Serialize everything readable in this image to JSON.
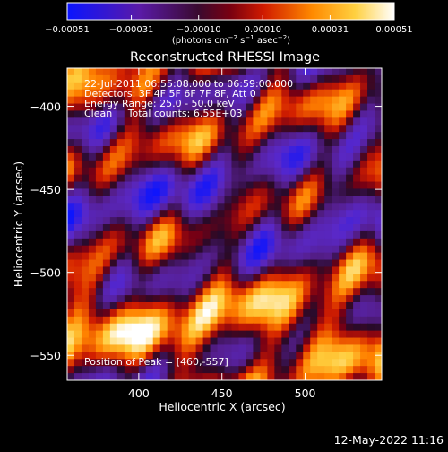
{
  "chart_data": {
    "type": "heatmap",
    "title": "Reconstructed RHESSI Image",
    "xlabel": "Heliocentric X (arcsec)",
    "ylabel": "Heliocentric Y (arcsec)",
    "xlim": [
      357,
      546
    ],
    "ylim": [
      -565,
      -377
    ],
    "x_ticks": [
      400,
      450,
      500
    ],
    "y_ticks": [
      -400,
      -450,
      -500,
      -550
    ],
    "x_tick_labels": [
      "400",
      "450",
      "500"
    ],
    "y_tick_labels": [
      "−400",
      "−450",
      "−500",
      "−550"
    ],
    "colorbar": {
      "range": [
        -0.00051,
        0.00051
      ],
      "ticks": [
        -0.00051,
        -0.00031,
        -0.0001,
        0.0001,
        0.00031,
        0.00051
      ],
      "tick_labels": [
        "−0.00051",
        "−0.00031",
        "−0.00010",
        "0.00010",
        "0.00031",
        "0.00051"
      ],
      "unit_label": "(photons cm",
      "unit_sup1": "−2",
      "unit_mid": " s",
      "unit_sup2": "−1",
      "unit_end": " asec",
      "unit_sup3": "−2",
      "unit_close": ")",
      "colormap": "blue-purple-red-orange-yellow-white"
    },
    "annotations": [
      "22-Jul-2011 06:55:08.000 to 06:59:00.000",
      "Detectors: 3F 4F 5F 6F 7F 8F, Att 0",
      "Energy Range: 25.0 - 50.0 keV",
      "Clean     Total counts: 6.55E+03"
    ],
    "peak_label": "Position of Peak = [460,-557]",
    "peak": {
      "x": 460,
      "y": -557
    },
    "structure": "diagonal bands of bright emission (positive) alternating with negative (blue/purple) troughs; brightest near upper-left (-390) and lower region (-510 to -555)"
  },
  "footer": {
    "timestamp": "12-May-2022 11:16"
  },
  "colors": {
    "background": "#000000",
    "axes": "#ffffff",
    "text": "#ffffff"
  }
}
